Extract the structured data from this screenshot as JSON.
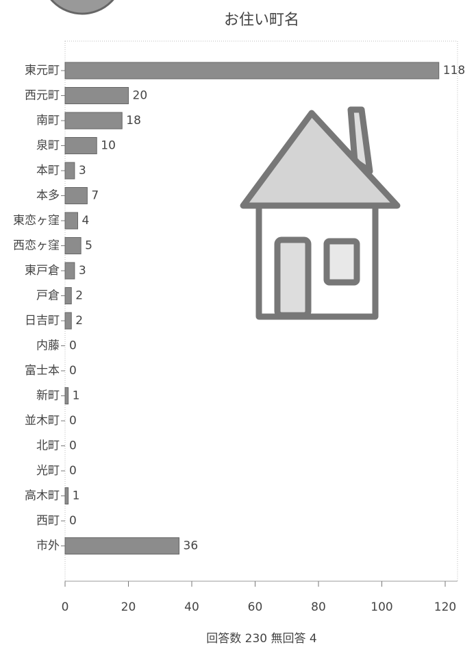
{
  "chart_data": {
    "type": "barh",
    "title": "お住い町名",
    "x_label": "回答数 230 無回答 4",
    "categories": [
      "東元町",
      "西元町",
      "南町",
      "泉町",
      "本町",
      "本多",
      "東恋ヶ窪",
      "西恋ヶ窪",
      "東戸倉",
      "戸倉",
      "日吉町",
      "内藤",
      "富士本",
      "新町",
      "並木町",
      "北町",
      "光町",
      "高木町",
      "西町",
      "市外"
    ],
    "values": [
      118,
      20,
      18,
      10,
      3,
      7,
      4,
      5,
      3,
      2,
      2,
      0,
      0,
      1,
      0,
      0,
      0,
      1,
      0,
      36
    ],
    "color": "#8c8c8c",
    "xlim": [
      0,
      120
    ],
    "xticks": [
      0,
      20,
      40,
      60,
      80,
      100,
      120
    ]
  }
}
